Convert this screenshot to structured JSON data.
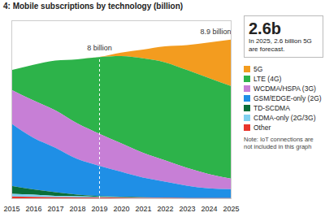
{
  "chart_data": {
    "type": "area",
    "title": "4: Mobile subscriptions by technology (billion)",
    "stacked": true,
    "tick_labels": "x",
    "legend": "right",
    "x": [
      2015,
      2016,
      2017,
      2018,
      2019,
      2020,
      2021,
      2022,
      2023,
      2024,
      2025
    ],
    "xlim": [
      2015,
      2025
    ],
    "xticks": [
      2015,
      2016,
      2017,
      2018,
      2019,
      2020,
      2021,
      2022,
      2023,
      2024,
      2025
    ],
    "ylim": [
      0,
      10
    ],
    "series": [
      {
        "name": "5G",
        "color": "#f39c1f",
        "values": [
          0,
          0,
          0,
          0,
          0.01,
          0.2,
          0.5,
          0.9,
          1.4,
          2.0,
          2.6
        ]
      },
      {
        "name": "LTE (4G)",
        "color": "#2db34a",
        "values": [
          1.1,
          2.0,
          2.8,
          3.6,
          4.3,
          4.9,
          5.3,
          5.5,
          5.5,
          5.4,
          5.2
        ]
      },
      {
        "name": "WCDMA/HSPA (3G)",
        "color": "#c77fd6",
        "values": [
          1.9,
          2.1,
          2.1,
          2.0,
          1.8,
          1.6,
          1.4,
          1.2,
          1.0,
          0.8,
          0.6
        ]
      },
      {
        "name": "GSM/EDGE-only (2G)",
        "color": "#1f8fe6",
        "values": [
          3.5,
          2.9,
          2.5,
          2.0,
          1.7,
          1.4,
          1.1,
          0.9,
          0.7,
          0.55,
          0.5
        ]
      },
      {
        "name": "TD-SCDMA",
        "color": "#0b6e3a",
        "values": [
          0.45,
          0.3,
          0.2,
          0.1,
          0.05,
          0.03,
          0.02,
          0.01,
          0,
          0,
          0
        ]
      },
      {
        "name": "CDMA-only (2G/3G)",
        "color": "#7fd0f0",
        "values": [
          0.15,
          0.12,
          0.08,
          0.06,
          0.04,
          0.03,
          0.02,
          0.01,
          0,
          0,
          0
        ]
      },
      {
        "name": "Other",
        "color": "#e8352c",
        "values": [
          0.1,
          0.08,
          0.06,
          0.05,
          0.04,
          0.03,
          0.02,
          0.02,
          0.01,
          0.01,
          0.01
        ]
      }
    ],
    "annotations": [
      {
        "text": "8 billion",
        "x": 2019,
        "y": 8,
        "line_style": "dashed"
      },
      {
        "text": "8.9 billion",
        "x": 2025,
        "y": 8.9
      }
    ],
    "callout": {
      "title": "2.6b",
      "text": [
        "In 2025, 2.6 billion 5G",
        "are forecast."
      ]
    },
    "note": "Note: IoT connections are not included in this graph"
  }
}
